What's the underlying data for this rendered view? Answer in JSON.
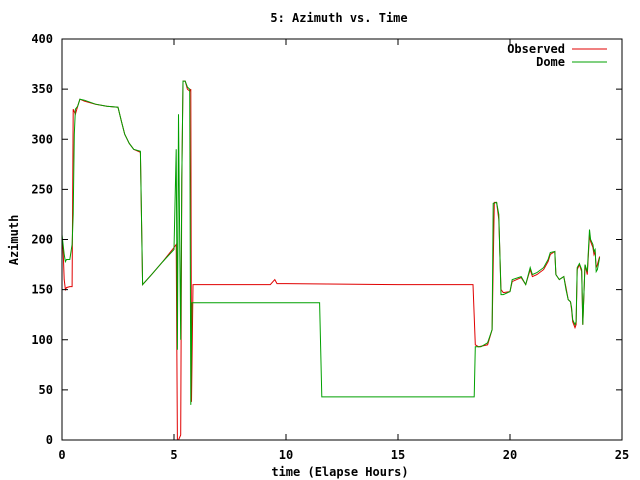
{
  "chart_data": {
    "type": "line",
    "title": "5: Azimuth vs. Time",
    "xlabel": "time (Elapse Hours)",
    "ylabel": "Azimuth",
    "xlim": [
      0,
      25
    ],
    "ylim": [
      0,
      400
    ],
    "xticks": [
      0,
      5,
      10,
      15,
      20,
      25
    ],
    "yticks": [
      0,
      50,
      100,
      150,
      200,
      250,
      300,
      350,
      400
    ],
    "grid": false,
    "legend_position": "top-right",
    "series": [
      {
        "name": "Observed",
        "color": "#e00000",
        "points": [
          [
            0,
            200
          ],
          [
            0.05,
            190
          ],
          [
            0.1,
            160
          ],
          [
            0.15,
            150
          ],
          [
            0.2,
            152
          ],
          [
            0.35,
            153
          ],
          [
            0.45,
            153
          ],
          [
            0.5,
            330
          ],
          [
            0.6,
            325
          ],
          [
            0.7,
            333
          ],
          [
            0.8,
            340
          ],
          [
            1.0,
            338
          ],
          [
            1.5,
            335
          ],
          [
            2.0,
            333
          ],
          [
            2.5,
            332
          ],
          [
            2.65,
            318
          ],
          [
            2.8,
            305
          ],
          [
            3.0,
            296
          ],
          [
            3.2,
            290
          ],
          [
            3.5,
            287
          ],
          [
            3.55,
            220
          ],
          [
            3.6,
            155
          ],
          [
            4.0,
            165
          ],
          [
            4.5,
            178
          ],
          [
            5.0,
            192
          ],
          [
            5.1,
            195
          ],
          [
            5.15,
            0
          ],
          [
            5.2,
            0
          ],
          [
            5.3,
            5
          ],
          [
            5.35,
            260
          ],
          [
            5.4,
            358
          ],
          [
            5.5,
            358
          ],
          [
            5.6,
            350
          ],
          [
            5.7,
            348
          ],
          [
            5.75,
            350
          ],
          [
            5.78,
            38
          ],
          [
            5.85,
            155
          ],
          [
            6.0,
            155
          ],
          [
            9.3,
            155
          ],
          [
            9.5,
            160
          ],
          [
            9.6,
            156
          ],
          [
            10.0,
            156
          ],
          [
            15.0,
            155
          ],
          [
            16.5,
            155
          ],
          [
            18.2,
            155
          ],
          [
            18.35,
            155
          ],
          [
            18.45,
            95
          ],
          [
            18.6,
            93
          ],
          [
            19.0,
            95
          ],
          [
            19.2,
            110
          ],
          [
            19.3,
            237
          ],
          [
            19.4,
            237
          ],
          [
            19.5,
            220
          ],
          [
            19.6,
            150
          ],
          [
            19.7,
            147
          ],
          [
            20.0,
            148
          ],
          [
            20.1,
            158
          ],
          [
            20.5,
            162
          ],
          [
            20.7,
            155
          ],
          [
            20.9,
            170
          ],
          [
            21.0,
            163
          ],
          [
            21.2,
            165
          ],
          [
            21.5,
            170
          ],
          [
            21.7,
            178
          ],
          [
            21.8,
            185
          ],
          [
            22.0,
            188
          ],
          [
            22.05,
            165
          ],
          [
            22.2,
            160
          ],
          [
            22.4,
            163
          ],
          [
            22.5,
            152
          ],
          [
            22.6,
            140
          ],
          [
            22.7,
            138
          ],
          [
            22.75,
            130
          ],
          [
            22.8,
            118
          ],
          [
            22.9,
            112
          ],
          [
            22.95,
            115
          ],
          [
            23.0,
            170
          ],
          [
            23.1,
            175
          ],
          [
            23.2,
            168
          ],
          [
            23.25,
            115
          ],
          [
            23.35,
            175
          ],
          [
            23.45,
            165
          ],
          [
            23.55,
            205
          ],
          [
            23.6,
            198
          ],
          [
            23.7,
            192
          ],
          [
            23.75,
            185
          ],
          [
            23.8,
            188
          ],
          [
            23.85,
            172
          ],
          [
            23.9,
            175
          ],
          [
            24.0,
            183
          ]
        ]
      },
      {
        "name": "Dome",
        "color": "#00a000",
        "points": [
          [
            0,
            205
          ],
          [
            0.05,
            195
          ],
          [
            0.1,
            185
          ],
          [
            0.15,
            178
          ],
          [
            0.2,
            180
          ],
          [
            0.35,
            180
          ],
          [
            0.45,
            195
          ],
          [
            0.5,
            225
          ],
          [
            0.55,
            305
          ],
          [
            0.6,
            330
          ],
          [
            0.7,
            333
          ],
          [
            0.8,
            340
          ],
          [
            1.0,
            339
          ],
          [
            1.5,
            335
          ],
          [
            2.0,
            333
          ],
          [
            2.5,
            332
          ],
          [
            2.65,
            318
          ],
          [
            2.8,
            305
          ],
          [
            3.0,
            296
          ],
          [
            3.2,
            290
          ],
          [
            3.5,
            288
          ],
          [
            3.55,
            222
          ],
          [
            3.6,
            155
          ],
          [
            4.0,
            165
          ],
          [
            4.5,
            178
          ],
          [
            5.0,
            190
          ],
          [
            5.1,
            290
          ],
          [
            5.15,
            90
          ],
          [
            5.2,
            325
          ],
          [
            5.25,
            210
          ],
          [
            5.3,
            100
          ],
          [
            5.35,
            260
          ],
          [
            5.4,
            358
          ],
          [
            5.5,
            358
          ],
          [
            5.6,
            352
          ],
          [
            5.7,
            350
          ],
          [
            5.75,
            35
          ],
          [
            5.8,
            137
          ],
          [
            6.0,
            137
          ],
          [
            10.0,
            137
          ],
          [
            11.5,
            137
          ],
          [
            11.6,
            43
          ],
          [
            15.0,
            43
          ],
          [
            18.4,
            43
          ],
          [
            18.45,
            93
          ],
          [
            18.7,
            93
          ],
          [
            19.0,
            97
          ],
          [
            19.2,
            110
          ],
          [
            19.25,
            236
          ],
          [
            19.4,
            237
          ],
          [
            19.5,
            225
          ],
          [
            19.6,
            145
          ],
          [
            19.7,
            145
          ],
          [
            20.0,
            148
          ],
          [
            20.1,
            160
          ],
          [
            20.5,
            163
          ],
          [
            20.7,
            155
          ],
          [
            20.9,
            172
          ],
          [
            21.0,
            165
          ],
          [
            21.2,
            167
          ],
          [
            21.5,
            172
          ],
          [
            21.7,
            180
          ],
          [
            21.8,
            187
          ],
          [
            22.0,
            188
          ],
          [
            22.05,
            165
          ],
          [
            22.2,
            160
          ],
          [
            22.4,
            163
          ],
          [
            22.5,
            150
          ],
          [
            22.6,
            140
          ],
          [
            22.7,
            138
          ],
          [
            22.75,
            132
          ],
          [
            22.8,
            120
          ],
          [
            22.9,
            115
          ],
          [
            22.95,
            118
          ],
          [
            23.0,
            172
          ],
          [
            23.1,
            176
          ],
          [
            23.2,
            170
          ],
          [
            23.25,
            115
          ],
          [
            23.35,
            175
          ],
          [
            23.45,
            168
          ],
          [
            23.55,
            210
          ],
          [
            23.6,
            200
          ],
          [
            23.7,
            195
          ],
          [
            23.75,
            188
          ],
          [
            23.8,
            190
          ],
          [
            23.85,
            168
          ],
          [
            23.9,
            170
          ],
          [
            24.0,
            182
          ]
        ]
      }
    ]
  }
}
